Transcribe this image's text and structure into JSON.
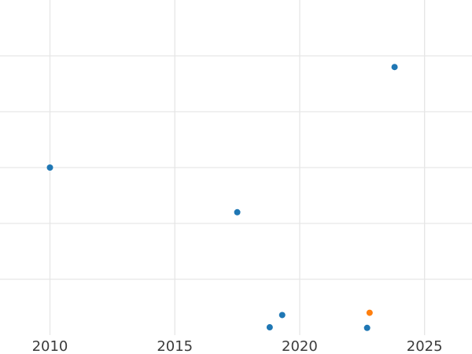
{
  "chart_data": {
    "type": "scatter",
    "title": "",
    "xlabel": "",
    "ylabel": "",
    "x_ticks": [
      2010,
      2015,
      2020,
      2025
    ],
    "x_tick_labels": [
      "2010",
      "2015",
      "2020",
      "2025"
    ],
    "xlim": [
      2008.0,
      2026.9
    ],
    "ylim": [
      0,
      6
    ],
    "y_gridlines": [
      1,
      2,
      3,
      4,
      5
    ],
    "grid": "on",
    "legend": "none",
    "series": [
      {
        "name": "blue",
        "color": "#1f77b4",
        "points": [
          {
            "x": 2010.0,
            "y": 3.0
          },
          {
            "x": 2017.5,
            "y": 2.2
          },
          {
            "x": 2018.8,
            "y": 0.14
          },
          {
            "x": 2019.3,
            "y": 0.36
          },
          {
            "x": 2022.7,
            "y": 0.13
          },
          {
            "x": 2023.8,
            "y": 4.8
          }
        ]
      },
      {
        "name": "orange",
        "color": "#ff7f0e",
        "points": [
          {
            "x": 2022.8,
            "y": 0.4
          }
        ]
      }
    ],
    "marker_radius_px": 4
  },
  "style": {
    "background": "#ffffff",
    "grid_color": "#e6e6e6",
    "tick_label_color": "#3b3b3b",
    "tick_font_size_px": 18
  }
}
